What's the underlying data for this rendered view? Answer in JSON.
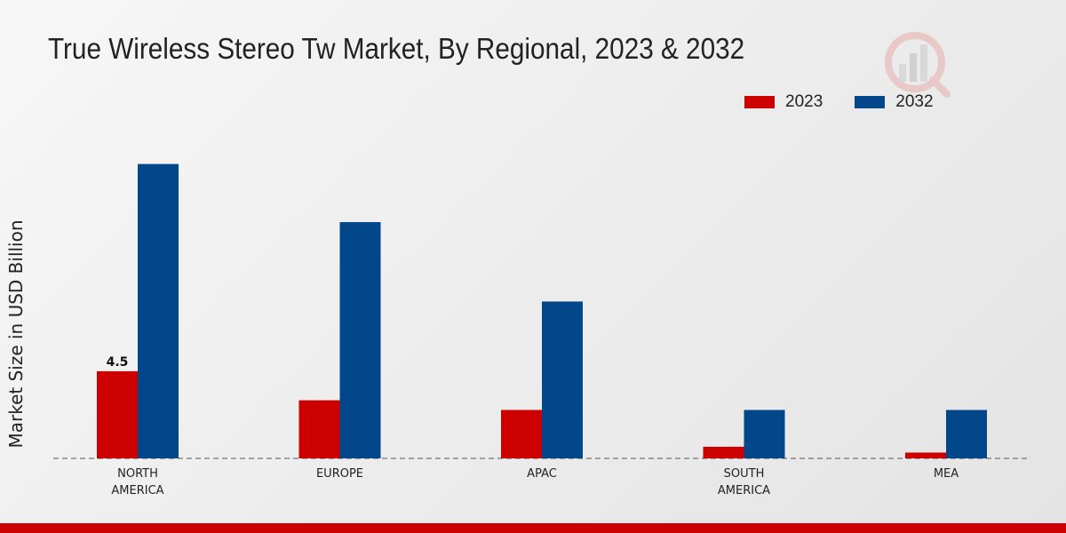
{
  "chart_data": {
    "type": "bar",
    "title": "True Wireless Stereo Tw Market, By Regional, 2023 & 2032",
    "ylabel": "Market Size in USD Billion",
    "xlabel": "",
    "categories": [
      "NORTH\nAMERICA",
      "EUROPE",
      "APAC",
      "SOUTH\nAMERICA",
      "MEA"
    ],
    "series": [
      {
        "name": "2023",
        "color": "#cc0000",
        "values": [
          4.5,
          3.0,
          2.5,
          0.6,
          0.3
        ]
      },
      {
        "name": "2032",
        "color": "#02478a",
        "values": [
          15.2,
          12.2,
          8.1,
          2.5,
          2.5
        ]
      }
    ],
    "data_labels": [
      {
        "series": 0,
        "index": 0,
        "text": "4.5"
      }
    ],
    "ylim": [
      0,
      20
    ],
    "grid": false,
    "legend": "top-right"
  },
  "colors": {
    "brand_bar": "#cc0000"
  }
}
